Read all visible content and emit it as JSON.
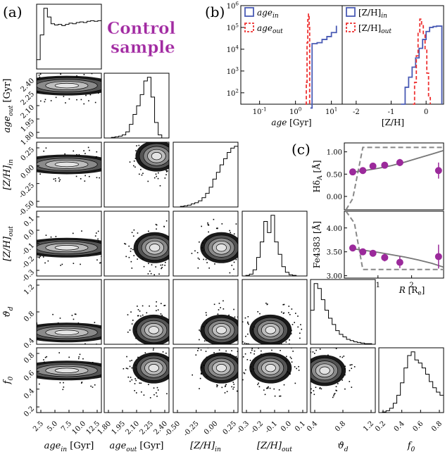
{
  "panel_labels": {
    "a": "(a)",
    "b": "(b)",
    "c": "(c)"
  },
  "annotation": {
    "line1": "Control",
    "line2": "sample",
    "color": "#a02aa0"
  },
  "colors": {
    "in": "#4a5bb5",
    "out": "#ee3333",
    "points": "#9b2a9b",
    "model": "#777777"
  },
  "chart_data": [
    {
      "type": "heatmap",
      "subtype": "corner-plot",
      "panel": "(a)",
      "variables": [
        {
          "key": "age_in",
          "label": "age",
          "sub": "in",
          "unit": " [Gyr]",
          "range": [
            2.0,
            13.8
          ],
          "ticks": [
            "2.5",
            "5.0",
            "7.5",
            "10.0",
            "12.5"
          ]
        },
        {
          "key": "age_out",
          "label": "age",
          "sub": "out",
          "unit": " [Gyr]",
          "range": [
            1.8,
            2.48
          ],
          "ticks": [
            "1.80",
            "1.95",
            "2.10",
            "2.25",
            "2.40"
          ]
        },
        {
          "key": "ZH_in",
          "label": "[Z/H]",
          "sub": "in",
          "unit": "",
          "range": [
            -0.72,
            0.45
          ],
          "ticks": [
            "-0.50",
            "-0.25",
            "0.00",
            "0.25"
          ]
        },
        {
          "key": "ZH_out",
          "label": "[Z/H]",
          "sub": "out",
          "unit": "",
          "range": [
            -0.36,
            0.12
          ],
          "ticks": [
            "-0.3",
            "-0.2",
            "-0.1",
            "0.0",
            "0.1"
          ]
        },
        {
          "key": "theta_d",
          "label": "ϑ",
          "sub": "d",
          "unit": "",
          "range": [
            0.05,
            1.42
          ],
          "ticks": [
            "0.4",
            "0.8",
            "1.2"
          ]
        },
        {
          "key": "f0",
          "label": "f",
          "sub": "0",
          "unit": "",
          "range": [
            0.15,
            0.92
          ],
          "ticks": [
            "0.2",
            "0.4",
            "0.6",
            "0.8"
          ]
        }
      ],
      "marginal_histograms": {
        "age_in": [
          0.15,
          0.55,
          0.98,
          0.84,
          0.73,
          0.71,
          0.72,
          0.7,
          0.72,
          0.74,
          0.73,
          0.75,
          0.76,
          0.75,
          0.77,
          0.78,
          0.77,
          0.78
        ],
        "age_out": [
          0.0,
          0.0,
          0.01,
          0.02,
          0.03,
          0.05,
          0.1,
          0.22,
          0.38,
          0.52,
          0.7,
          0.92,
          0.98,
          0.66,
          0.25,
          0.05,
          0.0,
          0.0
        ],
        "ZH_in": [
          0.0,
          0.0,
          0.01,
          0.02,
          0.03,
          0.05,
          0.07,
          0.1,
          0.15,
          0.22,
          0.32,
          0.45,
          0.56,
          0.68,
          0.78,
          0.88,
          0.95,
          0.98
        ],
        "ZH_out": [
          0.0,
          0.01,
          0.03,
          0.1,
          0.3,
          0.55,
          0.88,
          0.7,
          0.98,
          0.55,
          0.35,
          0.15,
          0.06,
          0.02,
          0.01,
          0.0,
          0.0,
          0.0
        ],
        "theta_d": [
          0.55,
          0.98,
          0.9,
          0.72,
          0.55,
          0.42,
          0.32,
          0.22,
          0.16,
          0.12,
          0.08,
          0.06,
          0.04,
          0.03,
          0.02,
          0.01,
          0.01,
          0.0
        ],
        "f0": [
          0.0,
          0.01,
          0.03,
          0.07,
          0.15,
          0.28,
          0.48,
          0.72,
          0.92,
          0.98,
          0.85,
          0.8,
          0.72,
          0.62,
          0.5,
          0.4,
          0.33,
          0.28
        ]
      },
      "density_peaks": [
        {
          "x": "age_in",
          "y": "age_out",
          "at": [
            7.5,
            2.35
          ]
        },
        {
          "x": "age_in",
          "y": "ZH_in",
          "at": [
            7.5,
            0.05
          ]
        },
        {
          "x": "age_out",
          "y": "ZH_in",
          "at": [
            2.35,
            0.2
          ]
        },
        {
          "x": "age_in",
          "y": "ZH_out",
          "at": [
            7.5,
            -0.15
          ]
        },
        {
          "x": "age_out",
          "y": "ZH_out",
          "at": [
            2.33,
            -0.15
          ]
        },
        {
          "x": "ZH_in",
          "y": "ZH_out",
          "at": [
            0.15,
            -0.15
          ]
        },
        {
          "x": "age_in",
          "y": "theta_d",
          "at": [
            7.5,
            0.3
          ]
        },
        {
          "x": "age_out",
          "y": "theta_d",
          "at": [
            2.32,
            0.35
          ]
        },
        {
          "x": "ZH_in",
          "y": "theta_d",
          "at": [
            0.15,
            0.35
          ]
        },
        {
          "x": "ZH_out",
          "y": "theta_d",
          "at": [
            -0.15,
            0.35
          ]
        },
        {
          "x": "age_in",
          "y": "f0",
          "at": [
            7.5,
            0.65
          ]
        },
        {
          "x": "age_out",
          "y": "f0",
          "at": [
            2.32,
            0.68
          ]
        },
        {
          "x": "ZH_in",
          "y": "f0",
          "at": [
            0.15,
            0.68
          ]
        },
        {
          "x": "ZH_out",
          "y": "f0",
          "at": [
            -0.15,
            0.68
          ]
        },
        {
          "x": "theta_d",
          "y": "f0",
          "at": [
            0.35,
            0.65
          ]
        }
      ]
    },
    {
      "type": "bar",
      "subtype": "step-histogram",
      "panel": "(b)",
      "y_scale": "log",
      "ylim": [
        30,
        1000000
      ],
      "ytick_labels": [
        "10^2",
        "10^3",
        "10^4",
        "10^5",
        "10^6"
      ],
      "subpanels": [
        {
          "xlabel": "age [Gyr]",
          "x_scale": "log",
          "xlim": [
            0.03,
            20
          ],
          "xtick_labels": [
            "10^-1",
            "10^0",
            "10^1"
          ],
          "series": [
            {
              "name": "age_in",
              "color": "#4a5bb5",
              "steps": [
                [
                  2.6,
                  20
                ],
                [
                  2.9,
                  18000
                ],
                [
                  4.0,
                  20000
                ],
                [
                  5.5,
                  28000
                ],
                [
                  7.5,
                  38000
                ],
                [
                  10.0,
                  58000
                ],
                [
                  13.8,
                  120000
                ]
              ]
            },
            {
              "name": "age_out",
              "color": "#ee3333",
              "steps": [
                [
                  1.9,
                  30
                ],
                [
                  2.0,
                  300
                ],
                [
                  2.1,
                  20000
                ],
                [
                  2.2,
                  230000
                ],
                [
                  2.3,
                  410000
                ],
                [
                  2.4,
                  100000
                ],
                [
                  2.48,
                  30
                ]
              ]
            }
          ]
        },
        {
          "xlabel": "[Z/H]",
          "x_scale": "linear",
          "xlim": [
            -2.4,
            0.5
          ],
          "xtick_labels": [
            "-2",
            "-1",
            "0"
          ],
          "series": [
            {
              "name": "[Z/H]_in",
              "color": "#4a5bb5",
              "steps": [
                [
                  -0.72,
                  30
                ],
                [
                  -0.6,
                  180
                ],
                [
                  -0.5,
                  520
                ],
                [
                  -0.4,
                  1500
                ],
                [
                  -0.3,
                  4000
                ],
                [
                  -0.2,
                  11000
                ],
                [
                  -0.1,
                  28000
                ],
                [
                  0.0,
                  65000
                ],
                [
                  0.1,
                  100000
                ],
                [
                  0.2,
                  110000
                ],
                [
                  0.3,
                  115000
                ],
                [
                  0.45,
                  30
                ]
              ]
            },
            {
              "name": "[Z/H]_out",
              "color": "#ee3333",
              "steps": [
                [
                  -0.38,
                  30
                ],
                [
                  -0.33,
                  300
                ],
                [
                  -0.28,
                  5000
                ],
                [
                  -0.23,
                  60000
                ],
                [
                  -0.18,
                  240000
                ],
                [
                  -0.13,
                  120000
                ],
                [
                  -0.08,
                  45000
                ],
                [
                  -0.03,
                  9000
                ],
                [
                  0.02,
                  800
                ],
                [
                  0.07,
                  60
                ],
                [
                  0.12,
                  30
                ]
              ]
            }
          ]
        }
      ]
    },
    {
      "type": "scatter",
      "panel": "(c)",
      "xlabel": "R [R_e]",
      "xlim": [
        0.0,
        2.95
      ],
      "xtick_labels": [
        "1",
        "2"
      ],
      "subpanels": [
        {
          "ylabel": "HδA [Å]",
          "ylim": [
            -0.3,
            1.2
          ],
          "ytick_labels": [
            "0.00",
            "0.50",
            "1.00"
          ],
          "points": {
            "x": [
              0.25,
              0.55,
              0.85,
              1.2,
              1.65,
              2.8
            ],
            "y": [
              0.55,
              0.58,
              0.68,
              0.7,
              0.76,
              0.58
            ],
            "err": [
              0.04,
              0.04,
              0.05,
              0.06,
              0.08,
              0.18
            ]
          },
          "model": {
            "x": [
              0.2,
              0.6,
              1.0,
              1.4,
              1.8,
              2.2,
              2.6,
              2.95
            ],
            "y": [
              0.54,
              0.58,
              0.63,
              0.69,
              0.77,
              0.86,
              0.95,
              1.03
            ]
          },
          "envelope": {
            "x": [
              0.05,
              0.25,
              0.55,
              2.95
            ],
            "y": [
              -0.3,
              -0.05,
              1.1,
              1.1
            ]
          }
        },
        {
          "ylabel": "Fe4383 [Å]",
          "ylim": [
            2.95,
            4.35
          ],
          "ytick_labels": [
            "3.00",
            "3.50",
            "4.00"
          ],
          "points": {
            "x": [
              0.25,
              0.55,
              0.85,
              1.2,
              1.65,
              2.8
            ],
            "y": [
              3.58,
              3.5,
              3.47,
              3.38,
              3.28,
              3.4
            ],
            "err": [
              0.05,
              0.05,
              0.06,
              0.08,
              0.12,
              0.25
            ]
          },
          "model": {
            "x": [
              0.2,
              0.6,
              1.0,
              1.4,
              1.8,
              2.2,
              2.6,
              2.95
            ],
            "y": [
              3.57,
              3.53,
              3.49,
              3.44,
              3.39,
              3.33,
              3.26,
              3.18
            ]
          },
          "envelope": {
            "x": [
              0.05,
              0.3,
              0.55,
              2.95
            ],
            "y": [
              4.35,
              4.1,
              3.13,
              3.13
            ]
          }
        }
      ]
    }
  ]
}
